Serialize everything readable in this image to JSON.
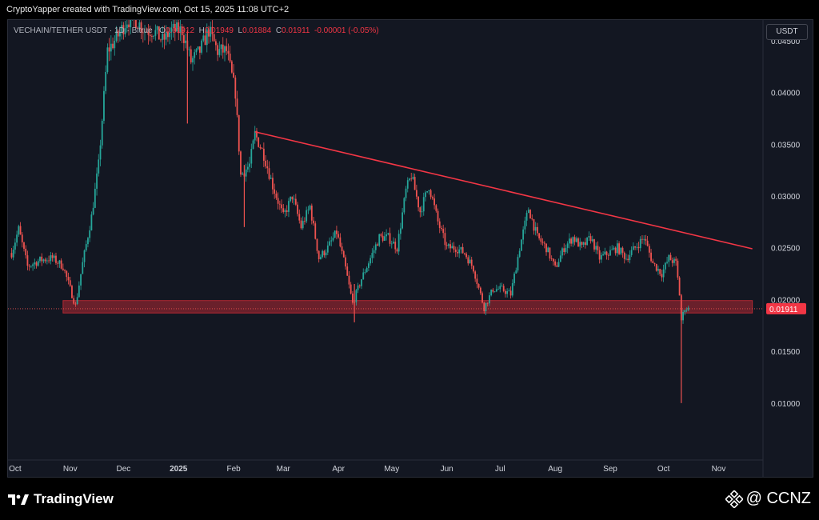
{
  "header": {
    "credit": "CryptoYapper created with TradingView.com, Oct 15, 2025 11:08 UTC+2"
  },
  "legend": {
    "symbol": "VECHAIN/TETHER USDT · 1D · Bitrue",
    "open_label": "O",
    "open": "0.01912",
    "high_label": "H",
    "high": "0.01949",
    "low_label": "L",
    "low": "0.01884",
    "close_label": "C",
    "close": "0.01911",
    "change": "-0.00001 (-0.05%)"
  },
  "currency": "USDT",
  "footer": {
    "brand": "TradingView",
    "watermark": "@ CCNZ"
  },
  "colors": {
    "background": "#131722",
    "up": "#26a69a",
    "down": "#ef5350",
    "trendline": "#f23645",
    "support_zone": "#b22833"
  },
  "chart_data": {
    "type": "candlestick",
    "xlabel": "",
    "ylabel": "",
    "ylim": [
      0.0045,
      0.047
    ],
    "y_ticks": [
      "0.04500",
      "0.04000",
      "0.03500",
      "0.03000",
      "0.02500",
      "0.02000",
      "0.01500",
      "0.01000"
    ],
    "y_tick_values": [
      0.045,
      0.04,
      0.035,
      0.03,
      0.025,
      0.02,
      0.015,
      0.01
    ],
    "x_ticks": [
      "Oct",
      "Nov",
      "Dec",
      "2025",
      "Feb",
      "Mar",
      "Apr",
      "May",
      "Jun",
      "Jul",
      "Aug",
      "Sep",
      "Oct",
      "Nov"
    ],
    "x_tick_dates": [
      "2024-10-01",
      "2024-11-01",
      "2024-12-01",
      "2025-01-01",
      "2025-02-01",
      "2025-03-01",
      "2025-04-01",
      "2025-05-01",
      "2025-06-01",
      "2025-07-01",
      "2025-08-01",
      "2025-09-01",
      "2025-10-01",
      "2025-11-01"
    ],
    "x_range": [
      "2024-09-27",
      "2025-11-26"
    ],
    "last_price": "0.01911",
    "trendline": {
      "from": [
        "2025-02-13",
        0.0362
      ],
      "to": [
        "2025-11-20",
        0.0249
      ]
    },
    "support_zone": {
      "from": "2024-10-28",
      "to": "2025-11-20",
      "low": 0.0187,
      "high": 0.0199
    },
    "price_path": [
      [
        "2024-09-29",
        0.0245
      ],
      [
        "2024-10-03",
        0.0268
      ],
      [
        "2024-10-08",
        0.0232
      ],
      [
        "2024-10-15",
        0.0238
      ],
      [
        "2024-10-22",
        0.024
      ],
      [
        "2024-10-28",
        0.0232
      ],
      [
        "2024-11-04",
        0.0194
      ],
      [
        "2024-11-08",
        0.0235
      ],
      [
        "2024-11-13",
        0.028
      ],
      [
        "2024-11-17",
        0.033
      ],
      [
        "2024-11-22",
        0.044
      ],
      [
        "2024-11-28",
        0.0455
      ],
      [
        "2024-12-03",
        0.047
      ],
      [
        "2024-12-08",
        0.047
      ],
      [
        "2024-12-13",
        0.046
      ],
      [
        "2024-12-18",
        0.046
      ],
      [
        "2024-12-23",
        0.045
      ],
      [
        "2024-12-28",
        0.046
      ],
      [
        "2025-01-03",
        0.046
      ],
      [
        "2025-01-08",
        0.043
      ],
      [
        "2025-01-13",
        0.044
      ],
      [
        "2025-01-18",
        0.046
      ],
      [
        "2025-01-23",
        0.044
      ],
      [
        "2025-01-28",
        0.044
      ],
      [
        "2025-02-02",
        0.04
      ],
      [
        "2025-02-05",
        0.032
      ],
      [
        "2025-02-10",
        0.033
      ],
      [
        "2025-02-13",
        0.036
      ],
      [
        "2025-02-18",
        0.034
      ],
      [
        "2025-02-23",
        0.031
      ],
      [
        "2025-03-01",
        0.028
      ],
      [
        "2025-03-06",
        0.03
      ],
      [
        "2025-03-11",
        0.027
      ],
      [
        "2025-03-16",
        0.029
      ],
      [
        "2025-03-21",
        0.024
      ],
      [
        "2025-03-26",
        0.025
      ],
      [
        "2025-03-31",
        0.0265
      ],
      [
        "2025-04-05",
        0.023
      ],
      [
        "2025-04-09",
        0.0196
      ],
      [
        "2025-04-14",
        0.022
      ],
      [
        "2025-04-19",
        0.024
      ],
      [
        "2025-04-24",
        0.026
      ],
      [
        "2025-04-29",
        0.026
      ],
      [
        "2025-05-04",
        0.025
      ],
      [
        "2025-05-09",
        0.0305
      ],
      [
        "2025-05-12",
        0.032
      ],
      [
        "2025-05-17",
        0.0285
      ],
      [
        "2025-05-22",
        0.031
      ],
      [
        "2025-05-27",
        0.0275
      ],
      [
        "2025-06-01",
        0.025
      ],
      [
        "2025-06-06",
        0.025
      ],
      [
        "2025-06-11",
        0.0245
      ],
      [
        "2025-06-16",
        0.023
      ],
      [
        "2025-06-22",
        0.0192
      ],
      [
        "2025-06-27",
        0.021
      ],
      [
        "2025-07-02",
        0.021
      ],
      [
        "2025-07-07",
        0.0205
      ],
      [
        "2025-07-12",
        0.025
      ],
      [
        "2025-07-17",
        0.0288
      ],
      [
        "2025-07-22",
        0.026
      ],
      [
        "2025-07-27",
        0.025
      ],
      [
        "2025-08-01",
        0.023
      ],
      [
        "2025-08-06",
        0.025
      ],
      [
        "2025-08-11",
        0.026
      ],
      [
        "2025-08-16",
        0.025
      ],
      [
        "2025-08-21",
        0.026
      ],
      [
        "2025-08-26",
        0.024
      ],
      [
        "2025-08-31",
        0.0245
      ],
      [
        "2025-09-05",
        0.025
      ],
      [
        "2025-09-10",
        0.024
      ],
      [
        "2025-09-15",
        0.025
      ],
      [
        "2025-09-20",
        0.026
      ],
      [
        "2025-09-25",
        0.0235
      ],
      [
        "2025-09-30",
        0.0225
      ],
      [
        "2025-10-04",
        0.024
      ],
      [
        "2025-10-08",
        0.0235
      ],
      [
        "2025-10-10",
        0.0205
      ],
      [
        "2025-10-11",
        0.018
      ],
      [
        "2025-10-13",
        0.0192
      ],
      [
        "2025-10-15",
        0.0191
      ]
    ]
  }
}
